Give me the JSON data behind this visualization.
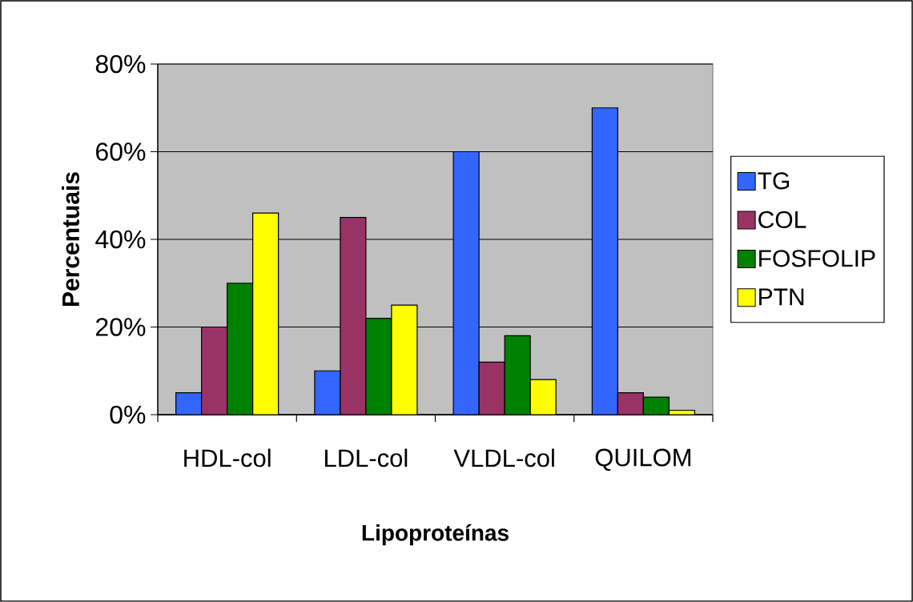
{
  "chart_data": {
    "type": "bar",
    "xlabel": "Lipoproteínas",
    "ylabel": "Percentuais",
    "categories": [
      "HDL-col",
      "LDL-col",
      "VLDL-col",
      "QUILOM"
    ],
    "series": [
      {
        "name": "TG",
        "color": "#3366ff",
        "values": [
          5,
          10,
          60,
          70
        ]
      },
      {
        "name": "COL",
        "color": "#993366",
        "values": [
          20,
          45,
          12,
          5
        ]
      },
      {
        "name": "FOSFOLIP",
        "color": "#008000",
        "values": [
          30,
          22,
          18,
          4
        ]
      },
      {
        "name": "PTN",
        "color": "#ffff00",
        "values": [
          46,
          25,
          8,
          1
        ]
      }
    ],
    "ylim": [
      0,
      80
    ],
    "yticks": [
      {
        "value": 0,
        "label": "0%"
      },
      {
        "value": 20,
        "label": "20%"
      },
      {
        "value": 40,
        "label": "40%"
      },
      {
        "value": 60,
        "label": "60%"
      },
      {
        "value": 80,
        "label": "80%"
      }
    ],
    "grid": "y",
    "legend": "right"
  }
}
